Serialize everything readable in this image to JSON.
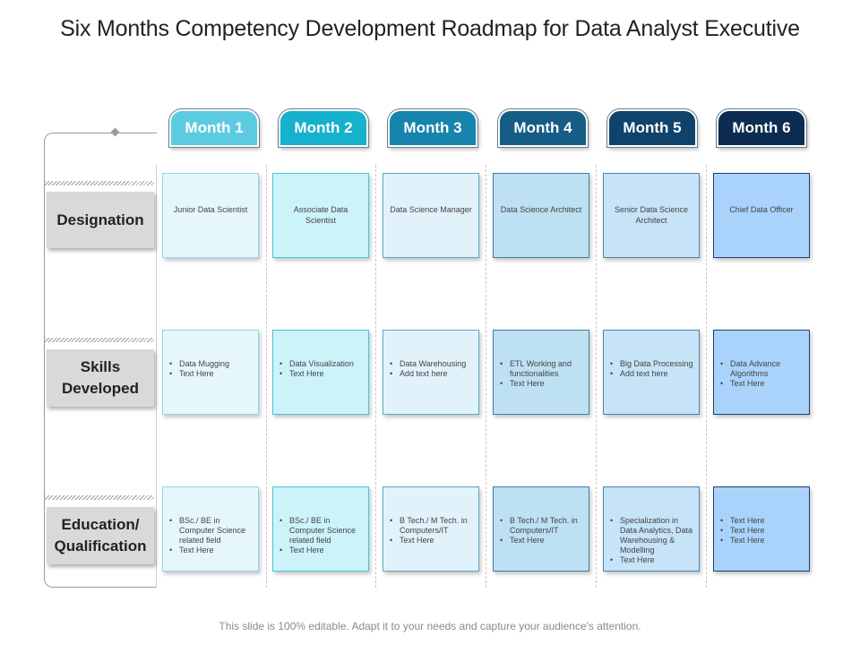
{
  "title": "Six Months Competency Development Roadmap for Data Analyst Executive",
  "footer": "This slide is 100% editable. Adapt it to your needs and capture your audience's attention.",
  "months": [
    {
      "label": "Month 1",
      "color": "#5ccbe2"
    },
    {
      "label": "Month 2",
      "color": "#16b1cd"
    },
    {
      "label": "Month 3",
      "color": "#1684ad"
    },
    {
      "label": "Month 4",
      "color": "#155d86"
    },
    {
      "label": "Month 5",
      "color": "#0f436c"
    },
    {
      "label": "Month 6",
      "color": "#0c2c52"
    }
  ],
  "row_labels": {
    "designation": [
      "Designation"
    ],
    "skills": [
      "Skills",
      "Developed"
    ],
    "education": [
      "Education/",
      "Qualification"
    ]
  },
  "cell_styles": [
    {
      "fill": "#e6f7fb",
      "border": "#8fd7e6"
    },
    {
      "fill": "#ccf3f9",
      "border": "#4ac3d8"
    },
    {
      "fill": "#e1f2fa",
      "border": "#5aa7c7"
    },
    {
      "fill": "#bee0f3",
      "border": "#3a7ea6"
    },
    {
      "fill": "#c6e3f8",
      "border": "#4d83aa"
    },
    {
      "fill": "#a9d3fb",
      "border": "#213f6a"
    }
  ],
  "designation": [
    "Junior Data Scientist",
    "Associate Data Scientist",
    "Data Science Manager",
    "Data Science Architect",
    "Senior Data Science Architect",
    "Chief Data Officer"
  ],
  "skills": [
    [
      "Data Mugging",
      "Text Here"
    ],
    [
      "Data Visualization",
      "Text Here"
    ],
    [
      "Data Warehousing",
      "Add text here"
    ],
    [
      "ETL Working and functionalities",
      "Text Here"
    ],
    [
      "Big Data Processing",
      "Add text here"
    ],
    [
      "Data Advance Algorithms",
      "Text Here"
    ]
  ],
  "education": [
    [
      "BSc./ BE in Computer Science related field",
      "Text Here"
    ],
    [
      "BSc./ BE in Computer Science related field",
      "Text Here"
    ],
    [
      "B Tech./ M Tech. in Computers/IT",
      "Text Here"
    ],
    [
      "B Tech./ M Tech. in Computers/IT",
      "Text Here"
    ],
    [
      "Specialization in Data Analytics, Data Warehousing & Modelling",
      "Text Here"
    ],
    [
      "Text Here",
      "Text Here",
      "Text Here"
    ]
  ]
}
